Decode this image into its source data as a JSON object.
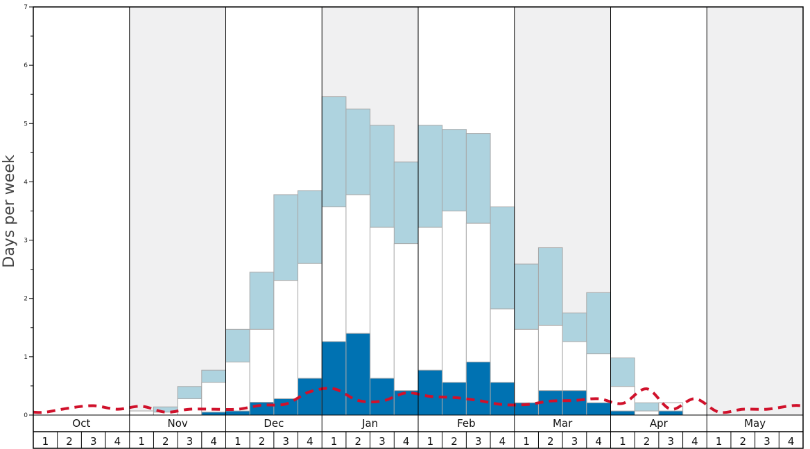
{
  "chart_data": {
    "type": "bar",
    "ylabel": "Days per week",
    "ylim": [
      0,
      7
    ],
    "y_ticks": [
      "0",
      "1",
      "2",
      "3",
      "4",
      "5",
      "6",
      "7"
    ],
    "months": [
      "Oct",
      "Nov",
      "Dec",
      "Jan",
      "Feb",
      "Mar",
      "Apr",
      "May"
    ],
    "weeks_per_month": [
      "1",
      "2",
      "3",
      "4"
    ],
    "categories": [
      "Oct 1",
      "Oct 2",
      "Oct 3",
      "Oct 4",
      "Nov 1",
      "Nov 2",
      "Nov 3",
      "Nov 4",
      "Dec 1",
      "Dec 2",
      "Dec 3",
      "Dec 4",
      "Jan 1",
      "Jan 2",
      "Jan 3",
      "Jan 4",
      "Feb 1",
      "Feb 2",
      "Feb 3",
      "Feb 4",
      "Mar 1",
      "Mar 2",
      "Mar 3",
      "Mar 4",
      "Apr 1",
      "Apr 2",
      "Apr 3",
      "Apr 4",
      "May 1",
      "May 2",
      "May 3",
      "May 4"
    ],
    "series": [
      {
        "color": "#0072b2",
        "values": [
          0,
          0,
          0,
          0,
          0,
          0,
          0,
          0.05,
          0.07,
          0.22,
          0.28,
          0.63,
          1.26,
          1.4,
          0.63,
          0.42,
          0.77,
          0.56,
          0.91,
          0.56,
          0.21,
          0.42,
          0.42,
          0.21,
          0.07,
          0,
          0.07,
          0,
          0,
          0,
          0,
          0
        ]
      },
      {
        "color": "#ffffff",
        "values": [
          0,
          0,
          0,
          0,
          0.07,
          0.05,
          0.28,
          0.56,
          0.91,
          1.47,
          2.31,
          2.6,
          3.57,
          3.78,
          3.22,
          2.94,
          3.22,
          3.5,
          3.29,
          1.82,
          1.47,
          1.54,
          1.26,
          1.05,
          0.49,
          0.07,
          0.21,
          0,
          0,
          0,
          0,
          0
        ]
      },
      {
        "color": "#aed3df",
        "values": [
          0,
          0,
          0,
          0,
          0.07,
          0.14,
          0.49,
          0.77,
          1.47,
          2.45,
          3.78,
          3.85,
          5.46,
          5.25,
          4.97,
          4.34,
          4.97,
          4.9,
          4.83,
          3.57,
          2.59,
          2.87,
          1.75,
          2.1,
          0.98,
          0.21,
          0.21,
          0,
          0,
          0,
          0,
          0
        ]
      }
    ],
    "line": {
      "style": "dashed",
      "color": "#d0112b",
      "values": [
        0.05,
        0.12,
        0.16,
        0.1,
        0.15,
        0.05,
        0.1,
        0.1,
        0.1,
        0.17,
        0.19,
        0.4,
        0.45,
        0.25,
        0.24,
        0.38,
        0.32,
        0.3,
        0.25,
        0.18,
        0.18,
        0.24,
        0.25,
        0.28,
        0.2,
        0.45,
        0.1,
        0.28,
        0.05,
        0.1,
        0.1,
        0.16
      ]
    },
    "shading": {
      "month_band_color": "#f0f0f1",
      "shaded_months": [
        "Nov",
        "Jan",
        "Mar",
        "May"
      ]
    },
    "grid": false
  }
}
